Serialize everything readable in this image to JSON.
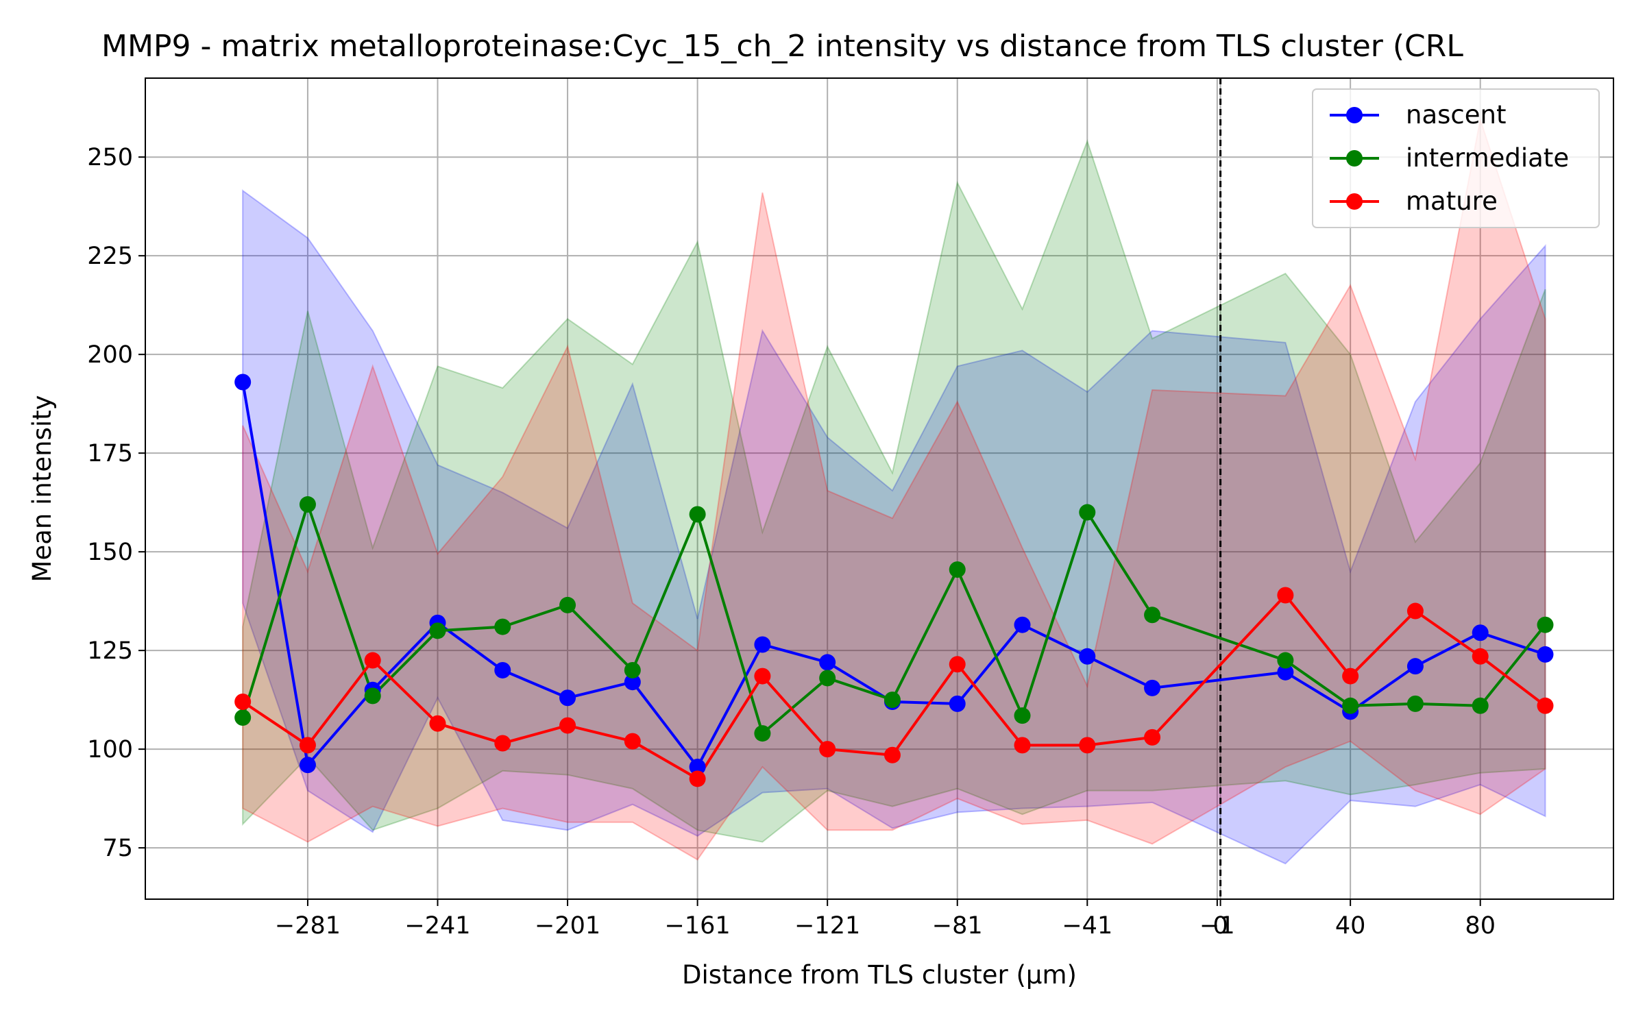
{
  "chart_data": {
    "type": "line",
    "title": "MMP9 - matrix metalloproteinase:Cyc_15_ch_2 intensity vs distance from TLS cluster (CRL",
    "xlabel": "Distance from TLS cluster (μm)",
    "ylabel": "Mean intensity",
    "xlim": [
      -331,
      121
    ],
    "ylim": [
      62,
      270
    ],
    "xticks": [
      {
        "value": -281,
        "label": "−281"
      },
      {
        "value": -241,
        "label": "−241"
      },
      {
        "value": -201,
        "label": "−201"
      },
      {
        "value": -161,
        "label": "−161"
      },
      {
        "value": -121,
        "label": "−121"
      },
      {
        "value": -81,
        "label": "−81"
      },
      {
        "value": -41,
        "label": "−41"
      },
      {
        "value": -1,
        "label": "−1"
      },
      {
        "value": 0,
        "label": "0"
      },
      {
        "value": 40,
        "label": "40"
      },
      {
        "value": 80,
        "label": "80"
      }
    ],
    "yticks": [
      75,
      100,
      125,
      150,
      175,
      200,
      225,
      250
    ],
    "grid": true,
    "vline_x": 0,
    "legend_position": "top-right",
    "x": [
      -301,
      -281,
      -261,
      -241,
      -221,
      -201,
      -181,
      -161,
      -141,
      -121,
      -101,
      -81,
      -61,
      -41,
      -21,
      20,
      40,
      60,
      80,
      100
    ],
    "series": [
      {
        "name": "nascent",
        "color": "#0000ff",
        "values": [
          193,
          96,
          115,
          132,
          120,
          113,
          117,
          95.5,
          126.5,
          122,
          112,
          111.5,
          131.5,
          123.5,
          115.5,
          119.5,
          109.5,
          121,
          129.5,
          124
        ],
        "upper": [
          241.5,
          229.5,
          206,
          172,
          165,
          156,
          192.5,
          133,
          206,
          179,
          165.5,
          197,
          201,
          190.5,
          206,
          203,
          145,
          188,
          209,
          227.5
        ],
        "lower": [
          137,
          89.5,
          79,
          113,
          82,
          79.5,
          86,
          78,
          89,
          90,
          80,
          84,
          85,
          85.5,
          86.5,
          71,
          87,
          85.5,
          91,
          83
        ]
      },
      {
        "name": "intermediate",
        "color": "#008000",
        "values": [
          108,
          162,
          113.5,
          130,
          131,
          136.5,
          120,
          159.5,
          104,
          118,
          112.5,
          145.5,
          108.5,
          160,
          134,
          122.5,
          111,
          111.5,
          111,
          131.5
        ],
        "upper": [
          131,
          211,
          151,
          197,
          191.5,
          209,
          197.5,
          228.5,
          155,
          202,
          170,
          243.5,
          211.5,
          254,
          204,
          220.5,
          200,
          152.5,
          172.5,
          216.5
        ],
        "lower": [
          81,
          98,
          79.5,
          85,
          94.5,
          93.5,
          90,
          79.5,
          76.5,
          89.5,
          85.5,
          90,
          83.5,
          89.5,
          89.5,
          92,
          88.5,
          91,
          94,
          95
        ]
      },
      {
        "name": "mature",
        "color": "#ff0000",
        "values": [
          112,
          101,
          122.5,
          106.5,
          101.5,
          106,
          102,
          92.5,
          118.5,
          100,
          98.5,
          121.5,
          101,
          101,
          103,
          139,
          118.5,
          135,
          123.5,
          111
        ],
        "upper": [
          182,
          145,
          197,
          149.5,
          169,
          202,
          137,
          125,
          241,
          165.5,
          158.5,
          188,
          151,
          116,
          191,
          189.5,
          217.5,
          173.5,
          259.5,
          209
        ],
        "lower": [
          85,
          76.5,
          85.5,
          80.5,
          85,
          81.5,
          81.5,
          72,
          95.5,
          79.5,
          79.5,
          87.5,
          81,
          82,
          76,
          95.5,
          102,
          89.5,
          83.5,
          95
        ]
      }
    ]
  }
}
